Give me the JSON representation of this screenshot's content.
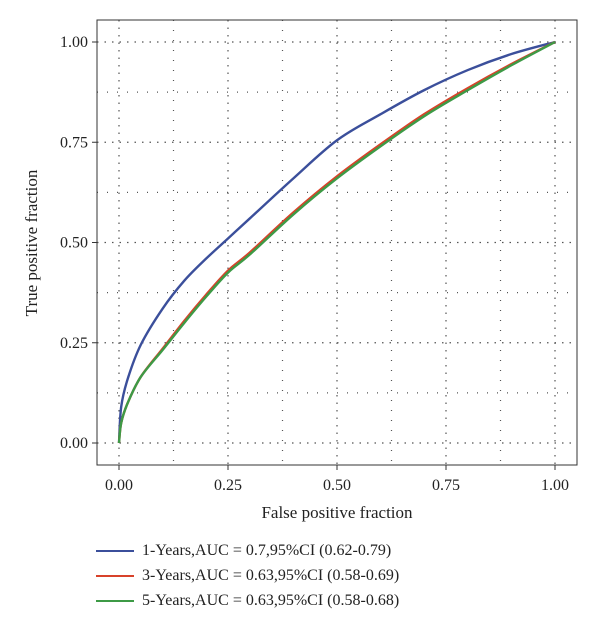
{
  "chart_data": {
    "type": "line",
    "xlabel": "False positive fraction",
    "ylabel": "True positive fraction",
    "xlim": [
      0,
      1
    ],
    "ylim": [
      0,
      1
    ],
    "xticks": [
      "0.00",
      "0.25",
      "0.50",
      "0.75",
      "1.00"
    ],
    "yticks": [
      "0.00",
      "0.25",
      "0.50",
      "0.75",
      "1.00"
    ],
    "grid": true,
    "legend_position": "bottom",
    "series": [
      {
        "name": "1-Years,AUC = 0.7,95%CI (0.62-0.79)",
        "color": "#3b4f9b",
        "x": [
          0,
          0.005,
          0.02,
          0.05,
          0.1,
          0.15,
          0.2,
          0.25,
          0.3,
          0.4,
          0.5,
          0.6,
          0.7,
          0.8,
          0.9,
          1.0
        ],
        "y": [
          0,
          0.09,
          0.16,
          0.245,
          0.335,
          0.405,
          0.46,
          0.51,
          0.56,
          0.66,
          0.755,
          0.82,
          0.88,
          0.93,
          0.97,
          1.0
        ]
      },
      {
        "name": "3-Years,AUC = 0.63,95%CI (0.58-0.69)",
        "color": "#d8422a",
        "x": [
          0,
          0.005,
          0.02,
          0.05,
          0.1,
          0.15,
          0.2,
          0.25,
          0.3,
          0.4,
          0.5,
          0.6,
          0.7,
          0.8,
          0.9,
          1.0
        ],
        "y": [
          0,
          0.05,
          0.1,
          0.165,
          0.235,
          0.305,
          0.37,
          0.43,
          0.475,
          0.575,
          0.665,
          0.745,
          0.82,
          0.885,
          0.945,
          1.0
        ]
      },
      {
        "name": "5-Years,AUC = 0.63,95%CI (0.58-0.68)",
        "color": "#3d9a46",
        "x": [
          0,
          0.005,
          0.02,
          0.05,
          0.1,
          0.15,
          0.2,
          0.25,
          0.3,
          0.4,
          0.5,
          0.6,
          0.7,
          0.8,
          0.9,
          1.0
        ],
        "y": [
          0,
          0.05,
          0.1,
          0.165,
          0.232,
          0.3,
          0.365,
          0.425,
          0.47,
          0.57,
          0.66,
          0.74,
          0.815,
          0.88,
          0.942,
          1.0
        ]
      }
    ]
  }
}
